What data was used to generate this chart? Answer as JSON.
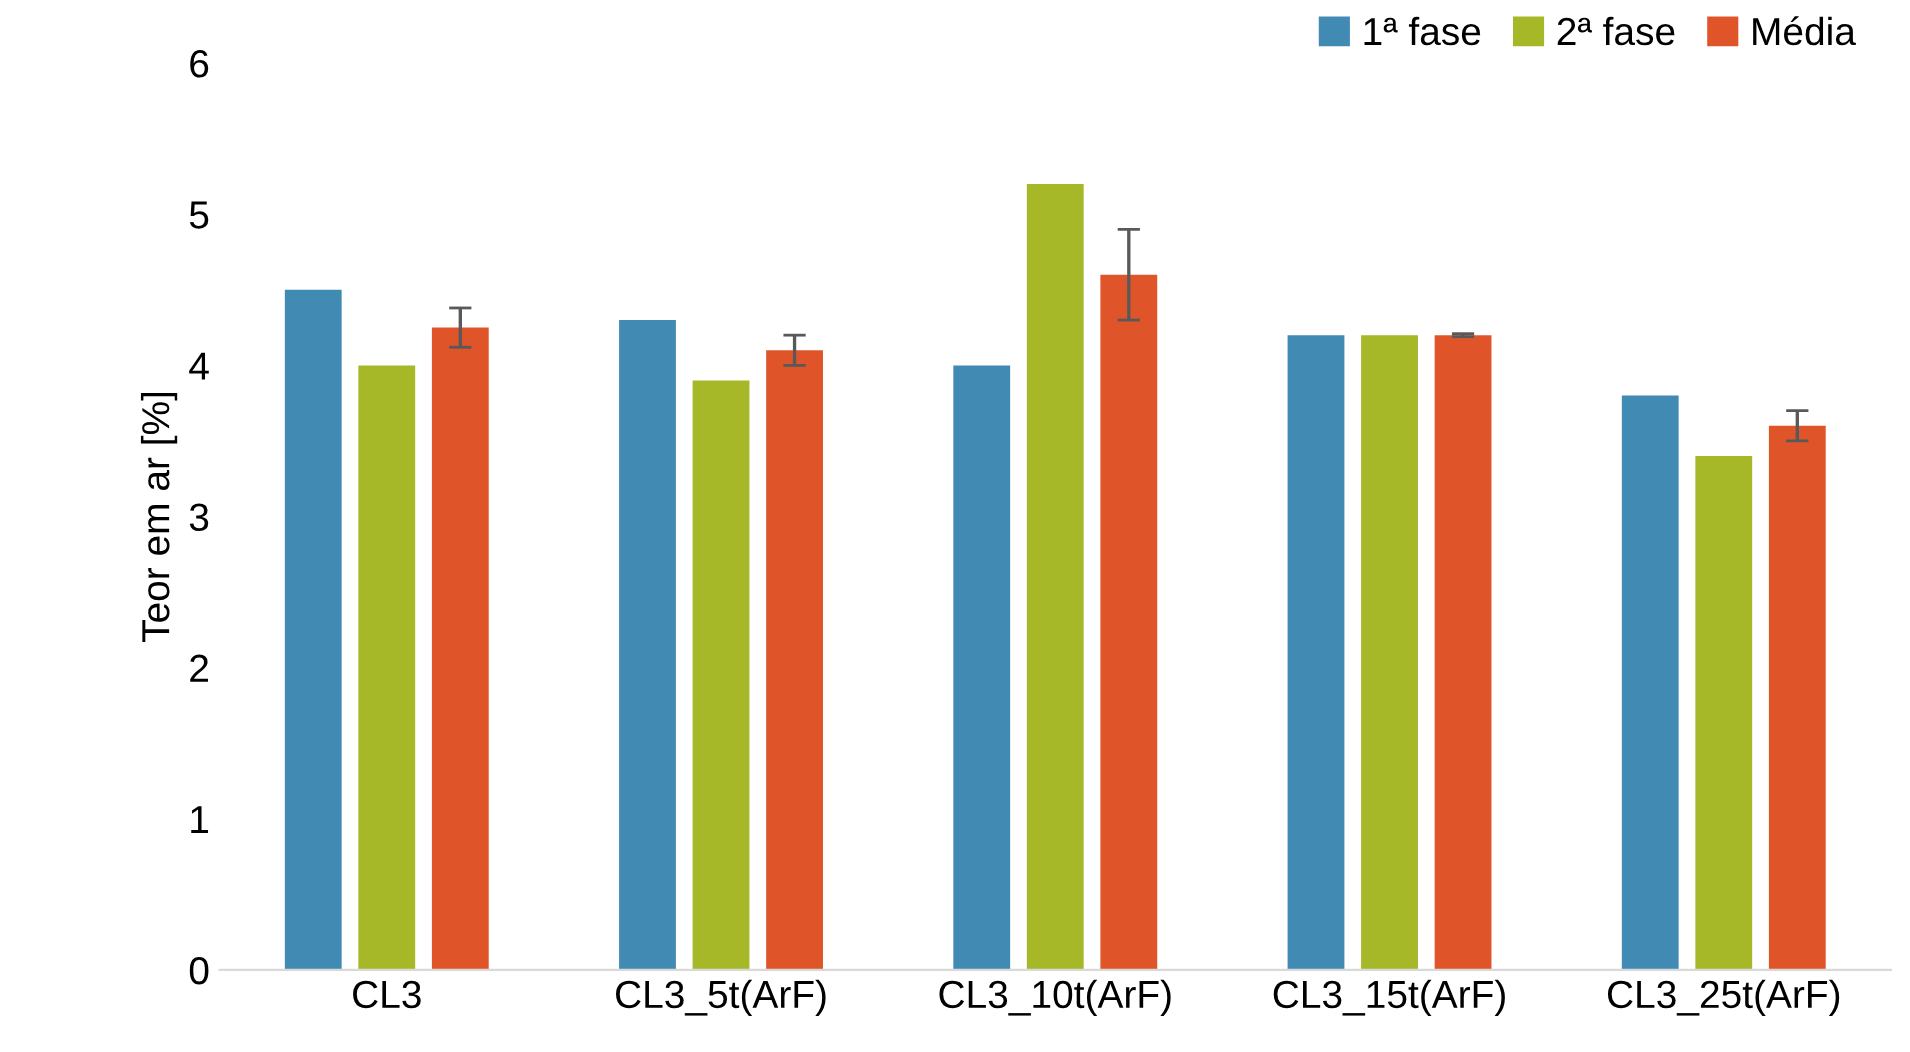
{
  "chart_data": {
    "type": "bar",
    "ylabel": "Teor em ar [%]",
    "categories": [
      "CL3",
      "CL3_5t(ArF)",
      "CL3_10t(ArF)",
      "CL3_15t(ArF)",
      "CL3_25t(ArF)"
    ],
    "series": [
      {
        "name": "1ª fase",
        "color": "#418ab3",
        "values": [
          4.5,
          4.3,
          4.0,
          4.2,
          3.8
        ]
      },
      {
        "name": "2ª fase",
        "color": "#a6b727",
        "values": [
          4.0,
          3.9,
          5.2,
          4.2,
          3.4
        ]
      },
      {
        "name": "Média",
        "color": "#e0542a",
        "values": [
          4.25,
          4.1,
          4.6,
          4.2,
          3.6
        ],
        "errors": [
          0.13,
          0.1,
          0.3,
          0.01,
          0.1
        ]
      }
    ],
    "ylim": [
      0,
      6
    ],
    "yticks": [
      0,
      1,
      2,
      3,
      4,
      5,
      6
    ],
    "grid": false,
    "legend": "top right"
  }
}
